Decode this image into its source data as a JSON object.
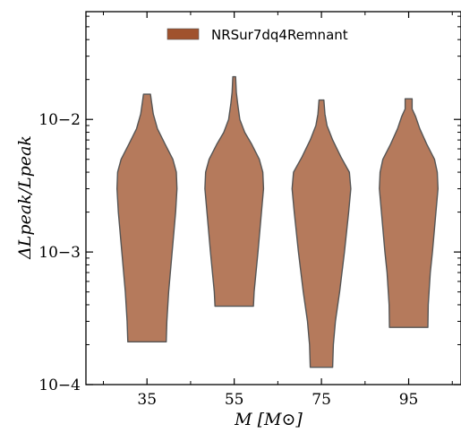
{
  "chart_data": {
    "type": "violin",
    "xlabel": "M [M⊙]",
    "ylabel": "ΔLpeak/Lpeak",
    "yscale": "log",
    "ylim": [
      0.0001,
      0.065
    ],
    "xlim": [
      21,
      107
    ],
    "categories": [
      35,
      55,
      75,
      95
    ],
    "ytick_labels": [
      "10−4",
      "10−3",
      "10−2"
    ],
    "color": "#b57a5c",
    "edge_color": "#555555",
    "legend": {
      "label": "NRSur7dq4Remnant",
      "swatch_color": "#a0522d",
      "placement": "top-center"
    },
    "grid": false,
    "series": [
      {
        "name": "NRSur7dq4Remnant",
        "violins": [
          {
            "x": 35,
            "min": 0.00021,
            "max": 0.0155,
            "profile": [
              [
                0.00021,
                0.55
              ],
              [
                0.0003,
                0.57
              ],
              [
                0.0005,
                0.62
              ],
              [
                0.001,
                0.72
              ],
              [
                0.002,
                0.82
              ],
              [
                0.003,
                0.86
              ],
              [
                0.004,
                0.84
              ],
              [
                0.005,
                0.74
              ],
              [
                0.0065,
                0.52
              ],
              [
                0.0085,
                0.3
              ],
              [
                0.011,
                0.18
              ],
              [
                0.0135,
                0.13
              ],
              [
                0.0155,
                0.1
              ]
            ]
          },
          {
            "x": 55,
            "min": 0.00039,
            "max": 0.021,
            "profile": [
              [
                0.00039,
                0.55
              ],
              [
                0.0005,
                0.57
              ],
              [
                0.001,
                0.68
              ],
              [
                0.002,
                0.78
              ],
              [
                0.003,
                0.84
              ],
              [
                0.004,
                0.82
              ],
              [
                0.005,
                0.72
              ],
              [
                0.0065,
                0.5
              ],
              [
                0.008,
                0.3
              ],
              [
                0.01,
                0.16
              ],
              [
                0.013,
                0.1
              ],
              [
                0.016,
                0.06
              ],
              [
                0.021,
                0.04
              ]
            ]
          },
          {
            "x": 75,
            "min": 0.000135,
            "max": 0.014,
            "profile": [
              [
                0.000135,
                0.32
              ],
              [
                0.0002,
                0.34
              ],
              [
                0.0003,
                0.4
              ],
              [
                0.0005,
                0.52
              ],
              [
                0.001,
                0.66
              ],
              [
                0.002,
                0.78
              ],
              [
                0.003,
                0.84
              ],
              [
                0.004,
                0.8
              ],
              [
                0.0052,
                0.56
              ],
              [
                0.007,
                0.32
              ],
              [
                0.009,
                0.16
              ],
              [
                0.011,
                0.1
              ],
              [
                0.014,
                0.07
              ]
            ]
          },
          {
            "x": 95,
            "min": 0.00027,
            "max": 0.0143,
            "profile": [
              [
                0.00027,
                0.55
              ],
              [
                0.0004,
                0.56
              ],
              [
                0.0007,
                0.62
              ],
              [
                0.001,
                0.68
              ],
              [
                0.002,
                0.78
              ],
              [
                0.003,
                0.84
              ],
              [
                0.004,
                0.82
              ],
              [
                0.005,
                0.74
              ],
              [
                0.0065,
                0.52
              ],
              [
                0.0085,
                0.32
              ],
              [
                0.0105,
                0.2
              ],
              [
                0.012,
                0.1
              ],
              [
                0.0143,
                0.1
              ]
            ]
          }
        ]
      }
    ]
  }
}
